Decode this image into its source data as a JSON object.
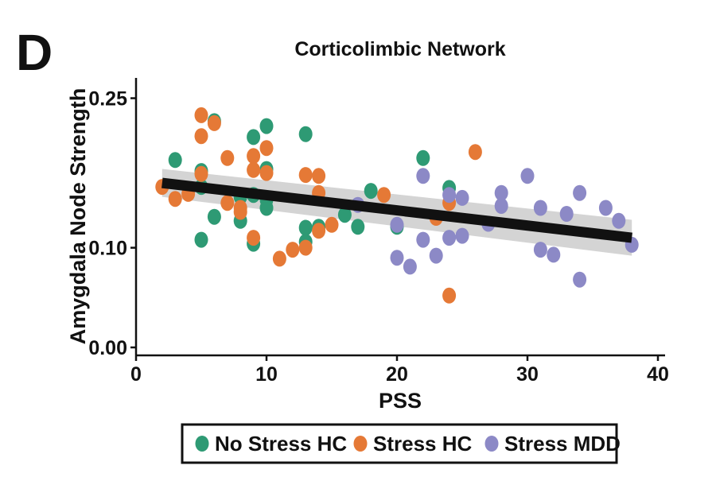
{
  "panel_label": "D",
  "chart_data": {
    "type": "scatter",
    "title": "Corticolimbic Network",
    "xlabel": "PSS",
    "ylabel": "Amygdala Node Strength",
    "xlim": [
      0,
      40
    ],
    "ylim": [
      0,
      0.26
    ],
    "x_ticks": [
      0,
      10,
      20,
      30,
      40
    ],
    "x_tick_labels": [
      "0",
      "10",
      "20",
      "30",
      "40"
    ],
    "y_ticks": [
      0.0,
      0.1,
      0.25
    ],
    "y_tick_labels": [
      "0.00",
      "0.10",
      "0.25"
    ],
    "grid": false,
    "legend_position": "bottom-center",
    "legend": [
      "No Stress HC",
      "Stress HC",
      "Stress MDD"
    ],
    "series": [
      {
        "name": "No Stress HC",
        "color": "#2e9a74",
        "points": [
          [
            3,
            0.188
          ],
          [
            5,
            0.177
          ],
          [
            5,
            0.161
          ],
          [
            6,
            0.227
          ],
          [
            6,
            0.131
          ],
          [
            8,
            0.127
          ],
          [
            8,
            0.151
          ],
          [
            9,
            0.211
          ],
          [
            9,
            0.153
          ],
          [
            9,
            0.104
          ],
          [
            10,
            0.222
          ],
          [
            10,
            0.179
          ],
          [
            10,
            0.148
          ],
          [
            10,
            0.14
          ],
          [
            13,
            0.214
          ],
          [
            13,
            0.12
          ],
          [
            13,
            0.106
          ],
          [
            14,
            0.121
          ],
          [
            16,
            0.133
          ],
          [
            17,
            0.121
          ],
          [
            18,
            0.157
          ],
          [
            20,
            0.121
          ],
          [
            22,
            0.19
          ],
          [
            24,
            0.16
          ],
          [
            5,
            0.108
          ]
        ]
      },
      {
        "name": "Stress HC",
        "color": "#e57936",
        "points": [
          [
            2,
            0.161
          ],
          [
            3,
            0.149
          ],
          [
            4,
            0.154
          ],
          [
            5,
            0.233
          ],
          [
            5,
            0.212
          ],
          [
            5,
            0.174
          ],
          [
            6,
            0.225
          ],
          [
            7,
            0.19
          ],
          [
            7,
            0.145
          ],
          [
            8,
            0.14
          ],
          [
            8,
            0.136
          ],
          [
            9,
            0.192
          ],
          [
            9,
            0.178
          ],
          [
            9,
            0.11
          ],
          [
            10,
            0.2
          ],
          [
            10,
            0.175
          ],
          [
            11,
            0.089
          ],
          [
            12,
            0.098
          ],
          [
            13,
            0.173
          ],
          [
            13,
            0.1
          ],
          [
            14,
            0.172
          ],
          [
            14,
            0.155
          ],
          [
            14,
            0.117
          ],
          [
            15,
            0.123
          ],
          [
            19,
            0.153
          ],
          [
            23,
            0.13
          ],
          [
            24,
            0.145
          ],
          [
            24,
            0.052
          ],
          [
            26,
            0.196
          ]
        ]
      },
      {
        "name": "Stress MDD",
        "color": "#8c89c6",
        "points": [
          [
            17,
            0.143
          ],
          [
            20,
            0.123
          ],
          [
            20,
            0.09
          ],
          [
            21,
            0.081
          ],
          [
            22,
            0.172
          ],
          [
            22,
            0.108
          ],
          [
            23,
            0.092
          ],
          [
            24,
            0.153
          ],
          [
            24,
            0.11
          ],
          [
            25,
            0.15
          ],
          [
            25,
            0.112
          ],
          [
            27,
            0.124
          ],
          [
            28,
            0.155
          ],
          [
            28,
            0.142
          ],
          [
            30,
            0.172
          ],
          [
            31,
            0.14
          ],
          [
            31,
            0.098
          ],
          [
            32,
            0.093
          ],
          [
            33,
            0.134
          ],
          [
            34,
            0.155
          ],
          [
            34,
            0.068
          ],
          [
            36,
            0.14
          ],
          [
            37,
            0.127
          ],
          [
            38,
            0.103
          ]
        ]
      }
    ],
    "regression": {
      "x_range": [
        2,
        38
      ],
      "y_start": 0.165,
      "y_end": 0.11,
      "ci_start": [
        0.151,
        0.179
      ],
      "ci_end": [
        0.092,
        0.128
      ],
      "line_color": "#111111",
      "band_color": "#d4d4d4"
    }
  }
}
